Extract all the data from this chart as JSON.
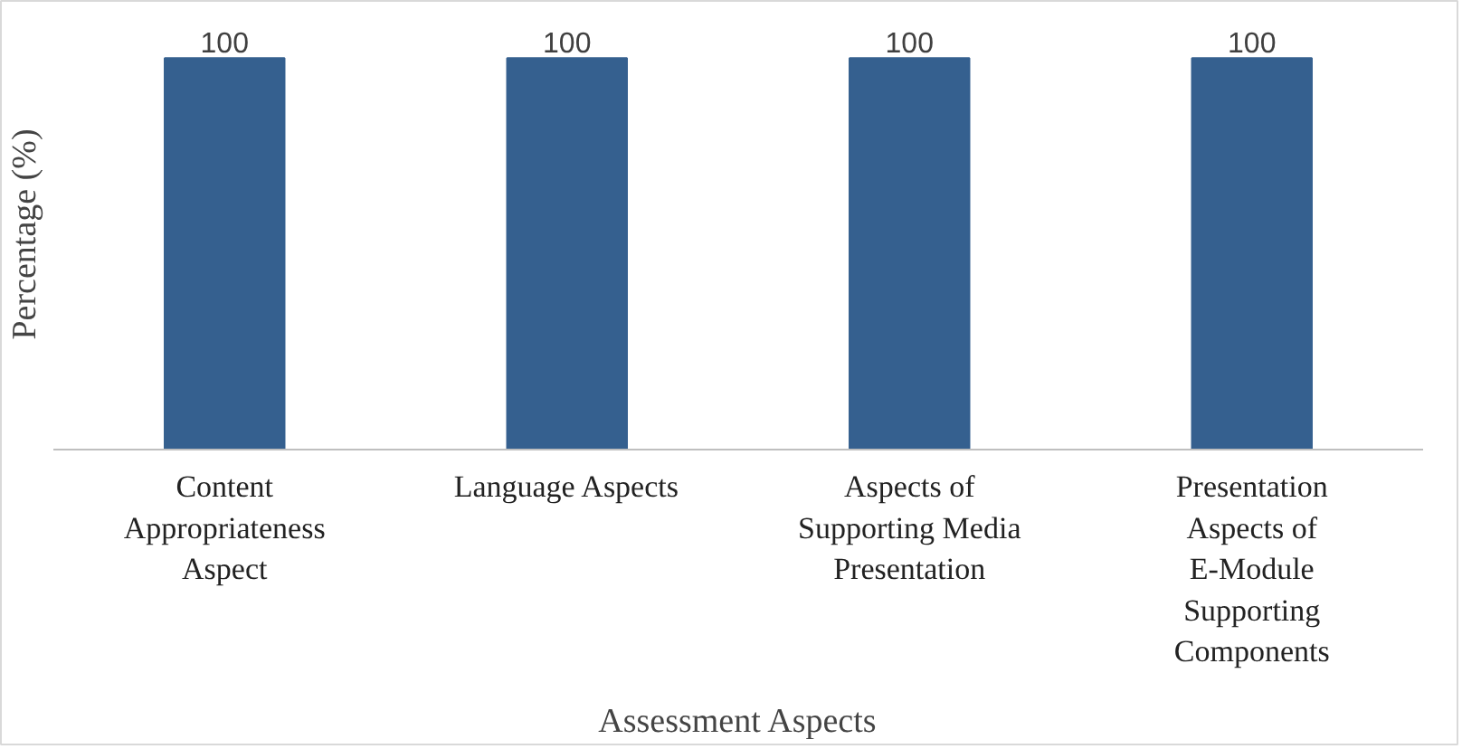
{
  "chart_data": {
    "type": "bar",
    "categories": [
      "Content Appropriateness Aspect",
      "Language Aspects",
      "Aspects of Supporting Media Presentation",
      "Presentation Aspects of E-Module Supporting Components"
    ],
    "values": [
      100,
      100,
      100,
      100
    ],
    "color": "#35608f",
    "xlabel": "Assessment Aspects",
    "ylabel": "Percentage (%)",
    "data_labels": true,
    "tick_labels": "x",
    "grid": false
  }
}
